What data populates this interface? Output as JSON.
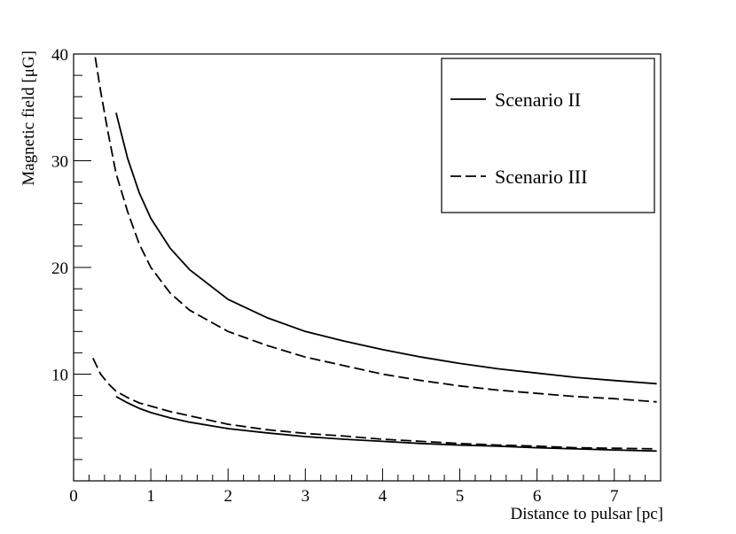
{
  "chart_data": {
    "type": "line",
    "xlabel": "Distance to pulsar [pc]",
    "ylabel": "Magnetic field [μG]",
    "xlim": [
      0,
      7.6
    ],
    "ylim": [
      0,
      40
    ],
    "x_ticks": [
      0,
      1,
      2,
      3,
      4,
      5,
      6,
      7
    ],
    "y_ticks": [
      10,
      20,
      30,
      40
    ],
    "grid": false,
    "legend_position": "top-right",
    "legend": [
      {
        "label": "Scenario II",
        "style": "solid"
      },
      {
        "label": "Scenario III",
        "style": "dashed"
      }
    ],
    "series": [
      {
        "legend_index": 0,
        "style": "solid",
        "color": "#000000",
        "x": [
          0.55,
          0.7,
          0.85,
          1,
          1.25,
          1.5,
          2,
          2.5,
          3,
          3.5,
          4,
          4.5,
          5,
          5.5,
          6,
          6.5,
          7,
          7.55
        ],
        "y": [
          34.5,
          30.2,
          27.0,
          24.6,
          21.8,
          19.8,
          17.0,
          15.3,
          14.0,
          13.1,
          12.3,
          11.6,
          11.0,
          10.5,
          10.1,
          9.7,
          9.4,
          9.1
        ]
      },
      {
        "legend_index": 1,
        "style": "dashed",
        "color": "#000000",
        "x": [
          0.28,
          0.35,
          0.45,
          0.55,
          0.7,
          0.85,
          1,
          1.25,
          1.5,
          2,
          2.5,
          3,
          3.5,
          4,
          4.5,
          5,
          5.5,
          6,
          6.5,
          7,
          7.55
        ],
        "y": [
          39.7,
          36.5,
          32.5,
          28.8,
          25.2,
          22.2,
          20.0,
          17.6,
          16.0,
          14.0,
          12.7,
          11.6,
          10.8,
          10.0,
          9.4,
          8.9,
          8.5,
          8.2,
          7.9,
          7.7,
          7.4
        ]
      },
      {
        "legend_index": 0,
        "style": "solid",
        "color": "#000000",
        "x": [
          0.55,
          0.7,
          0.85,
          1,
          1.25,
          1.5,
          2,
          2.5,
          3,
          3.5,
          4,
          4.5,
          5,
          5.5,
          6,
          6.5,
          7,
          7.55
        ],
        "y": [
          7.9,
          7.3,
          6.8,
          6.4,
          5.9,
          5.5,
          4.9,
          4.5,
          4.15,
          3.9,
          3.7,
          3.5,
          3.35,
          3.25,
          3.1,
          3.0,
          2.9,
          2.8
        ]
      },
      {
        "legend_index": 1,
        "style": "dashed",
        "color": "#000000",
        "x": [
          0.25,
          0.35,
          0.45,
          0.55,
          0.7,
          0.85,
          1,
          1.25,
          1.5,
          2,
          2.5,
          3,
          3.5,
          4,
          4.5,
          5,
          5.5,
          6,
          6.5,
          7,
          7.55
        ],
        "y": [
          11.5,
          10.0,
          9.1,
          8.4,
          7.8,
          7.3,
          7.0,
          6.5,
          6.1,
          5.3,
          4.8,
          4.45,
          4.2,
          3.9,
          3.7,
          3.5,
          3.35,
          3.25,
          3.1,
          3.05,
          3.0
        ]
      }
    ]
  }
}
